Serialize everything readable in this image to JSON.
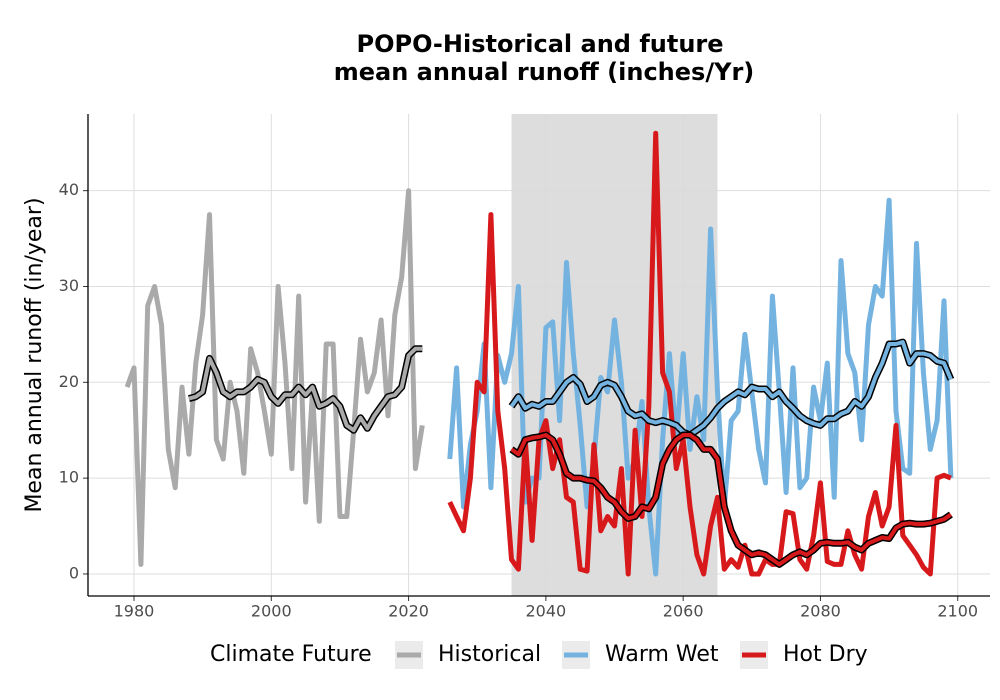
{
  "chart_data": {
    "type": "line",
    "title": "POPO-Historical and future",
    "subtitle": "mean annual runoff (inches/Yr)",
    "y_label": "Mean annual runoff (in/year)",
    "legend_title": "Climate Future",
    "legend": "bottom",
    "grid": true,
    "xlim": [
      1973.3,
      2104.7
    ],
    "ylim": [
      -2.3,
      48.0
    ],
    "xticks": [
      1980,
      2000,
      2020,
      2040,
      2060,
      2080,
      2100
    ],
    "yticks": [
      0,
      10,
      20,
      30,
      40
    ],
    "shade": [
      2035,
      2065
    ],
    "series": [
      {
        "name": "Historical",
        "color": "#aaaaaa",
        "x": [
          1979,
          1980,
          1981,
          1982,
          1983,
          1984,
          1985,
          1986,
          1987,
          1988,
          1989,
          1990,
          1991,
          1992,
          1993,
          1994,
          1995,
          1996,
          1997,
          1998,
          1999,
          2000,
          2001,
          2002,
          2003,
          2004,
          2005,
          2006,
          2007,
          2008,
          2009,
          2010,
          2011,
          2012,
          2013,
          2014,
          2015,
          2016,
          2017,
          2018,
          2019,
          2020,
          2021,
          2022
        ],
        "values": [
          19.5,
          21.5,
          1,
          28,
          30,
          26,
          13,
          9,
          19.5,
          12.5,
          22,
          27,
          37.5,
          14,
          12,
          20,
          17,
          10.5,
          23.5,
          21,
          17,
          12.5,
          30,
          22,
          11,
          29,
          7.5,
          19,
          5.5,
          24,
          24,
          6,
          6,
          15,
          24.5,
          19,
          21,
          26.5,
          16.5,
          27,
          31,
          40,
          11,
          15.5
        ],
        "rolling": [
          null,
          null,
          null,
          null,
          null,
          null,
          null,
          null,
          null,
          18.3,
          18.5,
          19,
          22.5,
          21,
          19,
          18.5,
          19,
          19,
          19.5,
          20.3,
          20,
          18.5,
          17.8,
          18.7,
          18.7,
          19.5,
          18.7,
          19.5,
          17.5,
          17.8,
          18.3,
          17.5,
          15.5,
          15,
          16.3,
          15.2,
          16.5,
          17.5,
          18.5,
          18.7,
          19.5,
          22.8,
          23.5,
          23.5
        ]
      },
      {
        "name": "Warm Wet",
        "color": "#74b3e0",
        "x": [
          2026,
          2027,
          2028,
          2029,
          2030,
          2031,
          2032,
          2033,
          2034,
          2035,
          2036,
          2037,
          2038,
          2039,
          2040,
          2041,
          2042,
          2043,
          2044,
          2045,
          2046,
          2047,
          2048,
          2049,
          2050,
          2051,
          2052,
          2053,
          2054,
          2055,
          2056,
          2057,
          2058,
          2059,
          2060,
          2061,
          2062,
          2063,
          2064,
          2065,
          2066,
          2067,
          2068,
          2069,
          2070,
          2071,
          2072,
          2073,
          2074,
          2075,
          2076,
          2077,
          2078,
          2079,
          2080,
          2081,
          2082,
          2083,
          2084,
          2085,
          2086,
          2087,
          2088,
          2089,
          2090,
          2091,
          2092,
          2093,
          2094,
          2095,
          2096,
          2097,
          2098,
          2099
        ],
        "values": [
          12,
          21.5,
          7,
          13.5,
          17,
          24,
          9,
          22.8,
          20,
          23,
          30,
          7.5,
          10,
          10,
          25.7,
          26.3,
          16,
          32.5,
          23,
          15.5,
          7,
          12,
          20.5,
          19,
          26.5,
          20,
          10,
          12,
          18,
          7,
          0,
          14,
          23,
          14,
          23,
          13,
          18.5,
          14,
          36,
          19,
          7,
          16,
          17,
          25,
          19,
          13,
          9.5,
          29,
          19,
          8.5,
          21.5,
          9,
          10,
          19.5,
          16,
          22,
          8,
          32.7,
          23,
          21,
          14,
          26,
          30,
          29,
          39,
          17,
          11,
          10.5,
          34.5,
          21,
          13,
          16,
          28.5,
          10
        ],
        "rolling": [
          null,
          null,
          null,
          null,
          null,
          null,
          null,
          null,
          null,
          17.5,
          18.5,
          17.3,
          17.7,
          17.5,
          18,
          18,
          19,
          20,
          20.5,
          19.8,
          18,
          18.5,
          19.7,
          20,
          19.7,
          18.5,
          17,
          16.5,
          16.7,
          16,
          15.8,
          16,
          15.8,
          15.5,
          14.8,
          14.5,
          15,
          15.5,
          16.3,
          17.3,
          18,
          18.5,
          19,
          18.7,
          19.5,
          19.3,
          19.3,
          18.5,
          19,
          18,
          17.3,
          16.5,
          16,
          15.7,
          15.5,
          16.2,
          16.2,
          16.7,
          17,
          18,
          17.5,
          18.5,
          20.5,
          22,
          24,
          24,
          24.2,
          22,
          23,
          23,
          22.8,
          22.2,
          22,
          20.3
        ]
      },
      {
        "name": "Hot Dry",
        "color": "#d7191c",
        "x": [
          2026,
          2027,
          2028,
          2029,
          2030,
          2031,
          2032,
          2033,
          2034,
          2035,
          2036,
          2037,
          2038,
          2039,
          2040,
          2041,
          2042,
          2043,
          2044,
          2045,
          2046,
          2047,
          2048,
          2049,
          2050,
          2051,
          2052,
          2053,
          2054,
          2055,
          2056,
          2057,
          2058,
          2059,
          2060,
          2061,
          2062,
          2063,
          2064,
          2065,
          2066,
          2067,
          2068,
          2069,
          2070,
          2071,
          2072,
          2073,
          2074,
          2075,
          2076,
          2077,
          2078,
          2079,
          2080,
          2081,
          2082,
          2083,
          2084,
          2085,
          2086,
          2087,
          2088,
          2089,
          2090,
          2091,
          2092,
          2093,
          2094,
          2095,
          2096,
          2097,
          2098,
          2099
        ],
        "values": [
          7.5,
          6,
          4.5,
          10,
          20,
          19,
          37.5,
          17,
          11,
          1.5,
          0.5,
          14,
          3.5,
          14,
          16,
          11,
          14,
          8,
          7.5,
          0.5,
          0.3,
          13.5,
          4.5,
          6,
          5,
          11,
          0,
          15,
          6,
          17.5,
          46,
          21,
          19,
          11,
          14,
          7,
          2,
          0,
          5,
          8,
          0.5,
          1.5,
          0.7,
          3,
          0,
          0,
          1.5,
          1,
          1,
          6.5,
          6.3,
          1.5,
          0.5,
          4,
          9.5,
          1.3,
          1,
          1,
          4.5,
          2,
          0.5,
          6,
          8.5,
          5,
          7,
          15.5,
          4,
          3,
          2,
          0.7,
          0,
          10,
          10.3,
          10
        ],
        "rolling": [
          null,
          null,
          null,
          null,
          null,
          null,
          null,
          null,
          null,
          13,
          12.5,
          14,
          14.2,
          14.3,
          14.5,
          14,
          12.5,
          10.5,
          10,
          10,
          9.8,
          9.7,
          9,
          8,
          7.5,
          6.5,
          5.8,
          6,
          7,
          6.8,
          8,
          11.5,
          13,
          14,
          14.5,
          14.5,
          14,
          13,
          13,
          12,
          7,
          4.5,
          3,
          2.5,
          2,
          2.2,
          2,
          1.5,
          1,
          1.5,
          2,
          2.3,
          2,
          2.5,
          3.2,
          3.3,
          3.2,
          3.2,
          3.3,
          2.8,
          2.5,
          3.2,
          3.5,
          3.8,
          3.7,
          4.8,
          5.2,
          5.3,
          5.2,
          5.2,
          5.3,
          5.5,
          5.7,
          6.2
        ]
      }
    ]
  }
}
